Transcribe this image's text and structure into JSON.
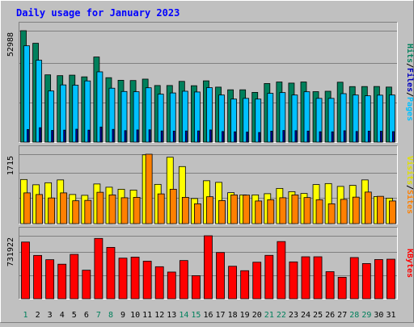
{
  "chart_data": {
    "type": "bar",
    "title": "Daily usage for January 2023",
    "categories": [
      "1",
      "2",
      "3",
      "4",
      "5",
      "6",
      "7",
      "8",
      "9",
      "10",
      "11",
      "12",
      "13",
      "14",
      "15",
      "16",
      "17",
      "18",
      "19",
      "20",
      "21",
      "22",
      "23",
      "24",
      "25",
      "26",
      "27",
      "28",
      "29",
      "30",
      "31"
    ],
    "weekend_days": [
      "1",
      "7",
      "8",
      "14",
      "15",
      "21",
      "22",
      "28",
      "29"
    ],
    "panels": [
      {
        "id": "hits",
        "max_label": "52988",
        "ymax": 52988,
        "right_labels": [
          {
            "text": "Hits",
            "color": "#00805c"
          },
          {
            "text": "/",
            "color": "#000000"
          },
          {
            "text": "Files",
            "color": "#0000c0"
          },
          {
            "text": "/",
            "color": "#000000"
          },
          {
            "text": "Pages",
            "color": "#00c0ff"
          }
        ],
        "series": [
          {
            "name": "Hits",
            "color": "#00805c",
            "values": [
              52988,
              47004,
              31992,
              31610,
              31843,
              31038,
              40474,
              30640,
              29402,
              29296,
              29960,
              26917,
              26917,
              28885,
              26820,
              29140,
              26152,
              24883,
              24882,
              23651,
              27858,
              28599,
              28064,
              28599,
              24001,
              24192,
              28491,
              26400,
              26428,
              26447,
              26174
            ]
          },
          {
            "name": "Files",
            "color": "#00c0ff",
            "values": [
              45810,
              38950,
              24316,
              27200,
              27080,
              29096,
              33420,
              25640,
              24080,
              23954,
              25840,
              22800,
              23380,
              24200,
              23840,
              25900,
              22400,
              20470,
              20800,
              20470,
              23200,
              23560,
              22400,
              23940,
              20800,
              20800,
              23050,
              22400,
              22028,
              22328,
              22404
            ]
          },
          {
            "name": "Pages",
            "color": "#0000c0",
            "values": [
              6000,
              6860,
              5560,
              5700,
              6140,
              5700,
              7180,
              6060,
              5450,
              5790,
              5850,
              5310,
              5240,
              5300,
              5320,
              5780,
              5050,
              4900,
              4770,
              4580,
              5220,
              5530,
              5450,
              5250,
              4940,
              4890,
              5390,
              5060,
              5230,
              5180,
              5000
            ]
          }
        ]
      },
      {
        "id": "visits",
        "max_label": "1715",
        "ymax": 1715,
        "right_labels": [
          {
            "text": "Visits",
            "color": "#e0e000"
          },
          {
            "text": "/",
            "color": "#000000"
          },
          {
            "text": "Sites",
            "color": "#ff8000"
          }
        ],
        "series": [
          {
            "name": "Visits",
            "color": "#ffff00",
            "values": [
              1090,
              960,
              1010,
              1080,
              720,
              700,
              980,
              900,
              850,
              830,
              1700,
              970,
              1640,
              1410,
              620,
              1060,
              1020,
              765,
              710,
              710,
              740,
              870,
              790,
              745,
              965,
              990,
              920,
              945,
              1080,
              670,
              630
            ]
          },
          {
            "name": "Sites",
            "color": "#ff8000",
            "values": [
              760,
              720,
              635,
              760,
              565,
              575,
              775,
              710,
              640,
              650,
              1715,
              735,
              850,
              650,
              490,
              665,
              570,
              710,
              705,
              560,
              590,
              640,
              710,
              645,
              590,
              490,
              600,
              655,
              780,
              675,
              560
            ]
          }
        ]
      },
      {
        "id": "kbytes",
        "max_label": "731922",
        "ymax": 731922,
        "right_labels": [
          {
            "text": "KBytes",
            "color": "#ff0000"
          }
        ],
        "series": [
          {
            "name": "KBytes",
            "color": "#ff0000",
            "values": [
              659000,
              503400,
              453800,
              401600,
              515700,
              331700,
              700900,
              597000,
              472000,
              483800,
              436600,
              372300,
              310200,
              444100,
              268000,
              731922,
              537300,
              377600,
              326200,
              424700,
              504300,
              664700,
              428300,
              487800,
              487800,
              314800,
              249900,
              478800,
              409100,
              455500,
              459600
            ]
          }
        ]
      }
    ]
  }
}
